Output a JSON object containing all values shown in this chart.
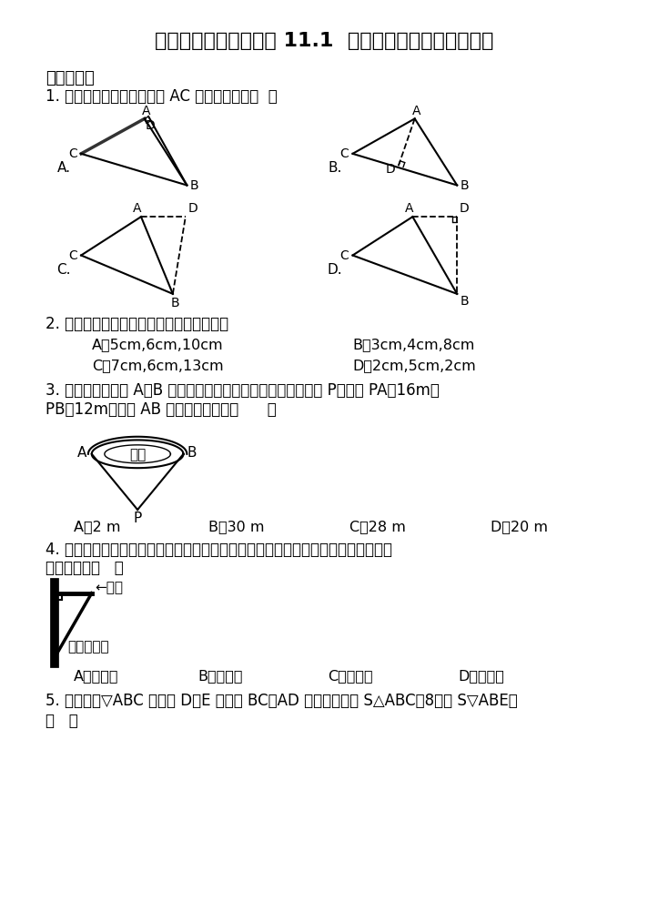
{
  "title": "人教版八年级上册数学 11.1  三角形有关的线段同步训练",
  "bg_color": "#ffffff",
  "text_color": "#000000",
  "section1": "一、单选题",
  "q1": "1. 在下列图形中，正确画出 AC 边上的高的是（  ）",
  "q2": "2. 下列所给线段，能够构成三角形的是（）",
  "q2_A": "A．5cm,6cm,10cm",
  "q2_B": "B．3cm,4cm,8cm",
  "q2_C": "C．7cm,6cm,13cm",
  "q2_D": "D．2cm,5cm,2cm",
  "q3_line1": "3. 为估计池塘两岸 A、B 间的距离，晓聪在池塘一侧选取了一点 P，测得 PA＝16m，",
  "q3_line2": "PB＝12m，那么 AB 间的距离可能是（      ）",
  "q3_A": "A．2 m",
  "q3_B": "B．30 m",
  "q3_C": "C．28 m",
  "q3_D": "D．20 m",
  "q4_line1": "4. 如图，空调安装在墙上时，一般都会像如图所示的方法固定在墙上，这种方法应用",
  "q4_line2": "了三角形的（   ）",
  "q4_label1": "←空调",
  "q4_label2": "三角形支架",
  "q4_A": "A．全等性",
  "q4_B": "B．灵活性",
  "q4_C": "C．稳定性",
  "q4_D": "D．对称性",
  "q5_line1": "5. 如图，在▽ABC 中，点 D、E 分别是 BC、AD 边的中点，若 S△ABC＝8，则 S▽ABE＝",
  "q5_line2": "（   ）"
}
